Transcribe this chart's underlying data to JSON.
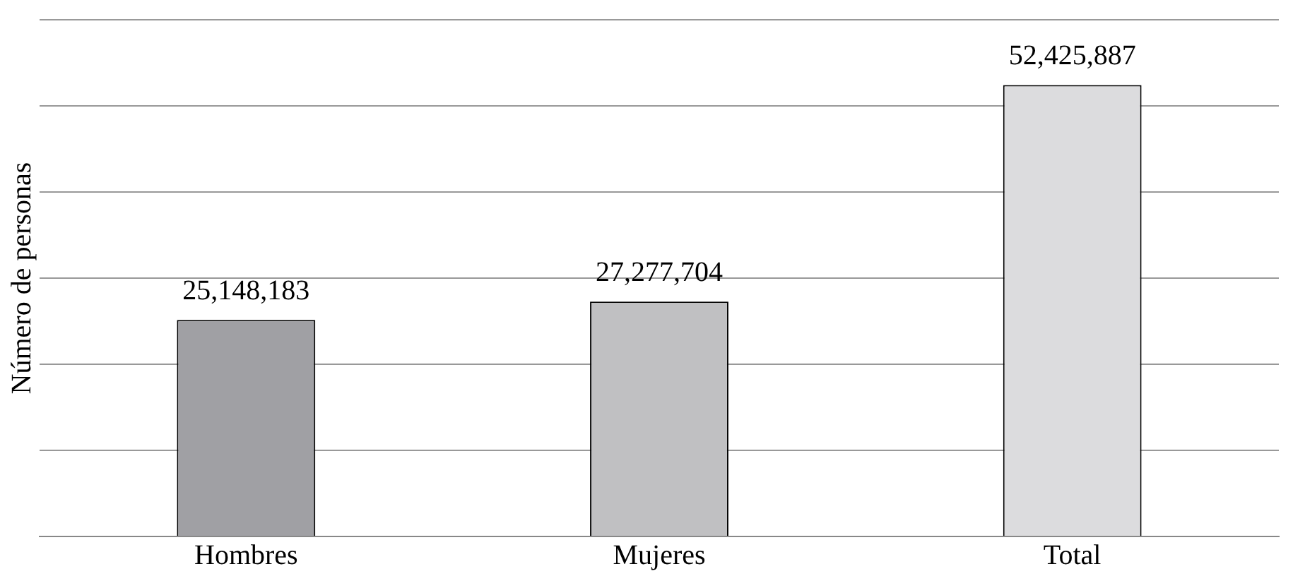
{
  "chart_data": {
    "type": "bar",
    "ylabel": "Número de personas",
    "categories": [
      "Hombres",
      "Mujeres",
      "Total"
    ],
    "values": [
      25148183,
      27277704,
      52425887
    ],
    "value_labels": [
      "25,148,183",
      "27,277,704",
      "52,425,887"
    ],
    "colors": [
      "#a0a0a4",
      "#c0c0c2",
      "#dcdcde"
    ],
    "tick_labels": "x",
    "grid": "y"
  }
}
